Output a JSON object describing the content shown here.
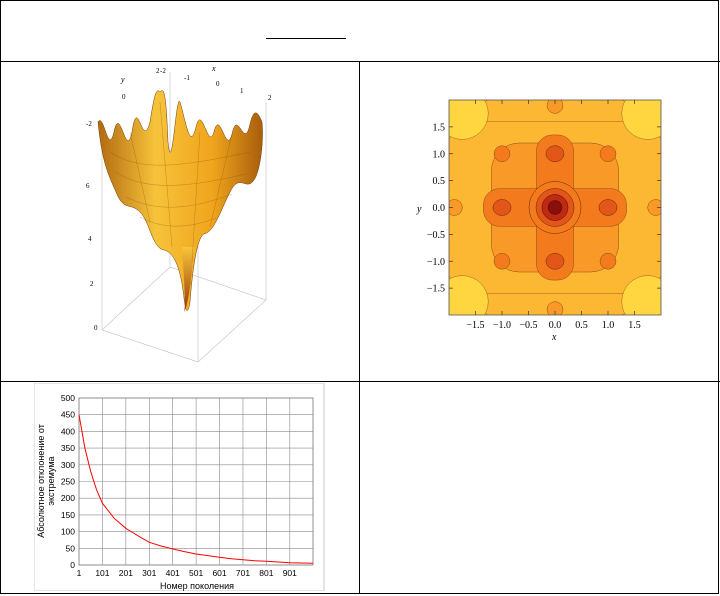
{
  "surface_plot": {
    "axis_x_label": "x",
    "axis_y_label": "y",
    "x_ticks": [
      "-2",
      "-1",
      "0",
      "1",
      "2"
    ],
    "y_ticks": [
      "2",
      "0",
      "-2"
    ],
    "z_ticks": [
      "0",
      "2",
      "4",
      "6"
    ],
    "surface_color": "#f2b01e"
  },
  "contour_plot": {
    "xlabel": "x",
    "ylabel": "y",
    "x_ticks": [
      "−1.5",
      "−1.0",
      "−0.5",
      "0.0",
      "0.5",
      "1.0",
      "1.5"
    ],
    "y_ticks": [
      "1.5",
      "1.0",
      "0.5",
      "0.0",
      "−0.5",
      "−1.0",
      "−1.5"
    ],
    "colors": [
      "#ffd640",
      "#fdb833",
      "#f99a28",
      "#f37a1d",
      "#e2561a",
      "#c02a12",
      "#8a0e0a"
    ]
  },
  "chart_data": {
    "type": "line",
    "title": "",
    "xlabel": "Номер поколения",
    "ylabel": "Абсолютное отклонение от экстремума",
    "x_tick_labels": [
      "1",
      "101",
      "201",
      "301",
      "401",
      "501",
      "601",
      "701",
      "801",
      "901"
    ],
    "y_tick_labels": [
      "0",
      "50",
      "100",
      "150",
      "200",
      "250",
      "300",
      "350",
      "400",
      "450",
      "500"
    ],
    "xlim": [
      1,
      1000
    ],
    "ylim": [
      0,
      500
    ],
    "grid": true,
    "series": [
      {
        "color": "#ff0000",
        "x": [
          1,
          26,
          51,
          76,
          101,
          151,
          201,
          251,
          301,
          351,
          401,
          451,
          501,
          551,
          601,
          651,
          701,
          751,
          801,
          851,
          901,
          951,
          1000
        ],
        "y": [
          450,
          350,
          280,
          225,
          185,
          140,
          110,
          88,
          68,
          57,
          48,
          40,
          33,
          28,
          23,
          19,
          16,
          13,
          11,
          9,
          7,
          6,
          5
        ]
      }
    ]
  }
}
